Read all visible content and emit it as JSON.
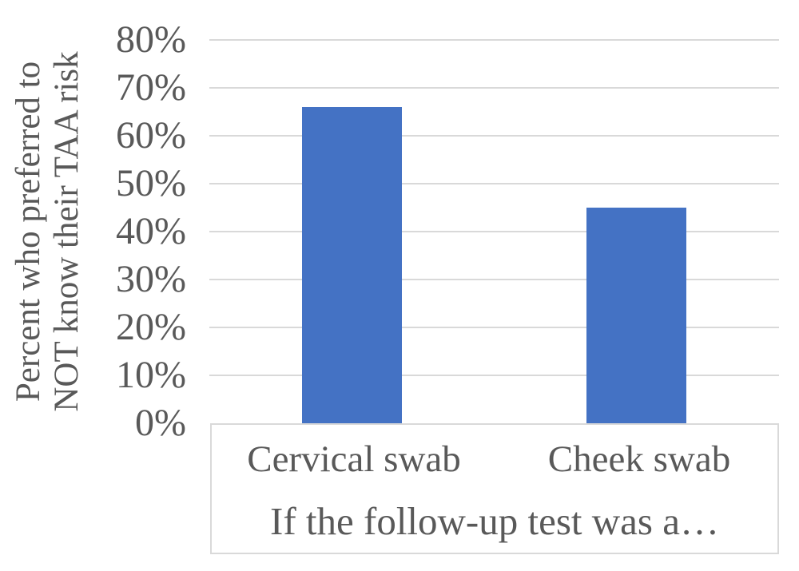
{
  "chart_data": {
    "type": "bar",
    "categories": [
      "Cervical swab",
      "Cheek swab"
    ],
    "values": [
      66,
      45
    ],
    "title": "",
    "xlabel": "If the follow-up test was a…",
    "ylabel": "Percent who preferred to NOT know their TAA risk",
    "ylabel_lines": [
      "Percent who preferred to",
      "NOT know their TAA risk"
    ],
    "ylim": [
      0,
      80
    ],
    "ytick_step": 10,
    "ytick_labels": [
      "80%",
      "70%",
      "60%",
      "50%",
      "40%",
      "30%",
      "20%",
      "10%",
      "0%"
    ],
    "grid": true,
    "legend": "none",
    "colors": {
      "bar": "#4472c4",
      "text": "#595959",
      "gridline": "#d9d9d9",
      "background": "#ffffff"
    }
  }
}
